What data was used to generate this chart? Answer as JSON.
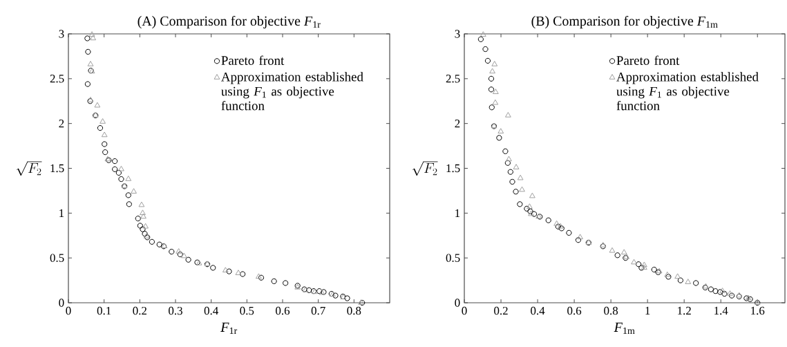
{
  "chart_data": [
    {
      "type": "scatter",
      "title": "(A) Comparison for objective *F*$_{1r}$",
      "xlabel": "*F*$_{1r}$",
      "ylabel": "\\sqrt{F_2}",
      "xlim": [
        0,
        0.9
      ],
      "ylim": [
        0,
        3
      ],
      "xticks": [
        0,
        0.1,
        0.2,
        0.3,
        0.4,
        0.5,
        0.6,
        0.7,
        0.8
      ],
      "yticks": [
        0,
        0.5,
        1,
        1.5,
        2,
        2.5,
        3
      ],
      "legend": "top right",
      "grid": false,
      "series": [
        {
          "name": "Pareto front",
          "color": "#000000",
          "marker": "circle",
          "x": [
            0.053,
            0.055,
            0.063,
            0.054,
            0.061,
            0.076,
            0.089,
            0.101,
            0.103,
            0.113,
            0.13,
            0.13,
            0.141,
            0.148,
            0.157,
            0.168,
            0.17,
            0.195,
            0.201,
            0.208,
            0.214,
            0.221,
            0.234,
            0.255,
            0.267,
            0.289,
            0.313,
            0.336,
            0.361,
            0.389,
            0.405,
            0.45,
            0.488,
            0.54,
            0.576,
            0.608,
            0.642,
            0.661,
            0.674,
            0.687,
            0.703,
            0.715,
            0.737,
            0.748,
            0.769,
            0.781,
            0.823
          ],
          "values": [
            2.95,
            2.8,
            2.59,
            2.44,
            2.25,
            2.09,
            1.95,
            1.77,
            1.68,
            1.59,
            1.58,
            1.49,
            1.45,
            1.38,
            1.3,
            1.2,
            1.1,
            0.94,
            0.86,
            0.82,
            0.77,
            0.73,
            0.68,
            0.65,
            0.63,
            0.57,
            0.54,
            0.48,
            0.45,
            0.43,
            0.39,
            0.35,
            0.32,
            0.28,
            0.24,
            0.22,
            0.19,
            0.15,
            0.14,
            0.13,
            0.13,
            0.12,
            0.1,
            0.08,
            0.07,
            0.05,
            0
          ]
        },
        {
          "name": "Approximation established using *F*$_{1}$ as objective function",
          "color": "#a0a0a0",
          "marker": "triangle",
          "x": [
            0.066,
            0.069,
            0.062,
            0.066,
            0.062,
            0.081,
            0.076,
            0.096,
            0.101,
            0.11,
            0.148,
            0.168,
            0.157,
            0.183,
            0.205,
            0.208,
            0.21,
            0.216,
            0.219,
            0.269,
            0.309,
            0.324,
            0.366,
            0.389,
            0.44,
            0.476,
            0.533,
            0.642,
            0.664,
            0.69,
            0.71,
            0.74,
            0.77,
            0.82
          ],
          "values": [
            2.99,
            2.95,
            2.66,
            2.58,
            2.26,
            2.2,
            2.09,
            2.02,
            1.87,
            1.6,
            1.49,
            1.38,
            1.3,
            1.24,
            1.09,
            1.0,
            0.96,
            0.85,
            0.74,
            0.63,
            0.57,
            0.52,
            0.44,
            0.43,
            0.36,
            0.33,
            0.29,
            0.17,
            0.14,
            0.12,
            0.11,
            0.09,
            0.06,
            0
          ]
        }
      ]
    },
    {
      "type": "scatter",
      "title": "(B) Comparison for objective *F*$_{1m}$",
      "xlabel": "*F*$_{1m}$",
      "ylabel": "\\sqrt{F_2}",
      "xlim": [
        0,
        1.75
      ],
      "ylim": [
        0,
        3
      ],
      "xticks": [
        0,
        0.2,
        0.4,
        0.6,
        0.8,
        1,
        1.2,
        1.4,
        1.6
      ],
      "yticks": [
        0,
        0.5,
        1,
        1.5,
        2,
        2.5,
        3
      ],
      "legend": "top right",
      "grid": false,
      "series": [
        {
          "name": "Pareto front",
          "color": "#000000",
          "marker": "circle",
          "x": [
            0.09,
            0.115,
            0.128,
            0.147,
            0.147,
            0.15,
            0.162,
            0.19,
            0.224,
            0.237,
            0.252,
            0.262,
            0.281,
            0.303,
            0.341,
            0.36,
            0.381,
            0.412,
            0.459,
            0.512,
            0.531,
            0.571,
            0.622,
            0.678,
            0.757,
            0.836,
            0.88,
            0.951,
            0.967,
            1.036,
            1.058,
            1.114,
            1.18,
            1.264,
            1.315,
            1.346,
            1.371,
            1.396,
            1.42,
            1.46,
            1.5,
            1.54,
            1.56,
            1.6
          ],
          "values": [
            2.94,
            2.83,
            2.7,
            2.5,
            2.38,
            2.18,
            1.97,
            1.84,
            1.69,
            1.56,
            1.46,
            1.35,
            1.24,
            1.1,
            1.05,
            1.02,
            0.99,
            0.96,
            0.92,
            0.85,
            0.83,
            0.78,
            0.7,
            0.67,
            0.63,
            0.53,
            0.5,
            0.43,
            0.39,
            0.37,
            0.34,
            0.29,
            0.25,
            0.22,
            0.17,
            0.15,
            0.13,
            0.12,
            0.1,
            0.08,
            0.07,
            0.05,
            0.04,
            0
          ]
        },
        {
          "name": "Approximation established using *F*$_{1}$ as objective function",
          "color": "#a0a0a0",
          "marker": "triangle",
          "x": [
            0.103,
            0.165,
            0.153,
            0.171,
            0.169,
            0.239,
            0.162,
            0.199,
            0.243,
            0.283,
            0.306,
            0.315,
            0.371,
            0.356,
            0.364,
            0.406,
            0.504,
            0.525,
            0.632,
            0.679,
            0.757,
            0.807,
            0.872,
            0.885,
            0.926,
            0.982,
            0.982,
            1.064,
            1.108,
            1.164,
            1.221,
            1.318,
            1.409,
            1.45,
            1.5,
            1.55,
            1.6
          ],
          "values": [
            2.99,
            2.66,
            2.58,
            2.35,
            2.23,
            2.09,
            1.97,
            1.91,
            1.6,
            1.51,
            1.39,
            1.26,
            1.19,
            1.07,
            0.99,
            0.96,
            0.88,
            0.85,
            0.73,
            0.67,
            0.64,
            0.58,
            0.56,
            0.51,
            0.45,
            0.42,
            0.39,
            0.35,
            0.31,
            0.29,
            0.23,
            0.18,
            0.13,
            0.1,
            0.08,
            0.05,
            0
          ]
        }
      ]
    }
  ]
}
